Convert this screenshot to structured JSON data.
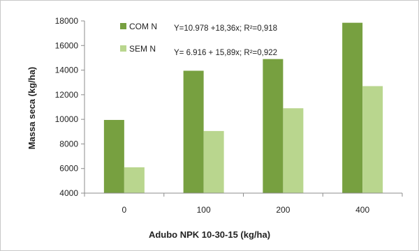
{
  "chart_data": {
    "type": "bar",
    "categories": [
      "0",
      "100",
      "200",
      "400"
    ],
    "series": [
      {
        "name": "COM N",
        "values": [
          9950,
          13950,
          14900,
          17850
        ],
        "color": "#77a040"
      },
      {
        "name": "SEM N",
        "values": [
          6100,
          9050,
          10900,
          12700
        ],
        "color": "#b9d68e"
      }
    ],
    "xlabel": "Adubo  NPK 10-30-15 (kg/ha)",
    "ylabel": "Massa seca (kg/ha)",
    "ylim": [
      4000,
      18000
    ],
    "yticks": [
      4000,
      6000,
      8000,
      10000,
      12000,
      14000,
      16000,
      18000
    ],
    "grid": false,
    "legend_position": "top-left",
    "annotations": [
      {
        "series": "COM N",
        "text": "Y=10.978 +18,36x; R²=0,918"
      },
      {
        "series": "SEM N",
        "text": "Y= 6.916 + 15,89x; R²=0,922"
      }
    ]
  }
}
